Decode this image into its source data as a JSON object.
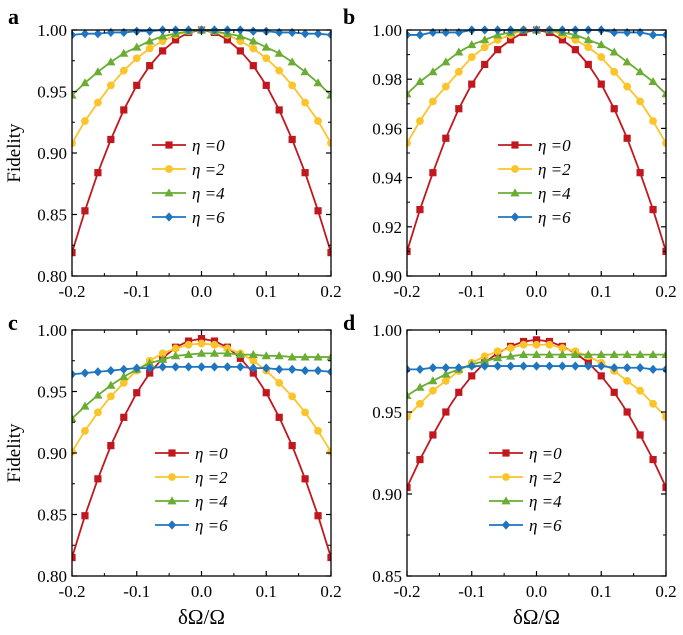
{
  "ylabel_shared": "Fidelity",
  "xlabel_shared": "δΩ/Ω",
  "legend_symbol": "η",
  "colors": {
    "eta0": "#c0181e",
    "eta2": "#fbc42a",
    "eta4": "#6aac34",
    "eta6": "#1f75bf"
  },
  "chart_data": [
    {
      "panel": "a",
      "type": "line",
      "xlim": [
        -0.2,
        0.2
      ],
      "xticks": [
        "-0.2",
        "-0.1",
        "0.0",
        "0.1",
        "0.2"
      ],
      "ylim": [
        0.8,
        1.0
      ],
      "yticks": [
        "0.80",
        "0.85",
        "0.90",
        "0.95",
        "1.00"
      ],
      "ylabel": "Fidelity",
      "xlabel": "",
      "legend": "center",
      "x": [
        -0.2,
        -0.18,
        -0.16,
        -0.14,
        -0.12,
        -0.1,
        -0.08,
        -0.06,
        -0.04,
        -0.02,
        0.0,
        0.02,
        0.04,
        0.06,
        0.08,
        0.1,
        0.12,
        0.14,
        0.16,
        0.18,
        0.2
      ],
      "series": [
        {
          "name": "η =0",
          "peak": 0.9995,
          "curv": 4.5,
          "values": [
            0.819,
            0.853,
            0.884,
            0.911,
            0.935,
            0.955,
            0.971,
            0.983,
            0.992,
            0.998,
            1.0,
            0.998,
            0.992,
            0.983,
            0.971,
            0.955,
            0.935,
            0.911,
            0.884,
            0.853,
            0.819
          ]
        },
        {
          "name": "η =2",
          "peak": 0.9995,
          "curv": 2.28,
          "values": [
            0.908,
            0.926,
            0.941,
            0.955,
            0.967,
            0.977,
            0.985,
            0.991,
            0.996,
            0.999,
            1.0,
            0.999,
            0.996,
            0.991,
            0.985,
            0.977,
            0.967,
            0.955,
            0.941,
            0.926,
            0.908
          ]
        },
        {
          "name": "η =4",
          "peak": 0.9995,
          "curv": 1.31,
          "values": [
            0.947,
            0.957,
            0.966,
            0.974,
            0.981,
            0.986,
            0.991,
            0.995,
            0.997,
            0.999,
            1.0,
            0.999,
            0.997,
            0.995,
            0.991,
            0.986,
            0.981,
            0.974,
            0.966,
            0.957,
            0.947
          ]
        },
        {
          "name": "η =6",
          "peak": 0.9995,
          "curv": 0.1,
          "values": [
            0.996,
            0.997,
            0.997,
            0.998,
            0.998,
            0.999,
            0.999,
            1.0,
            1.0,
            1.0,
            1.0,
            1.0,
            1.0,
            1.0,
            0.999,
            0.999,
            0.998,
            0.998,
            0.997,
            0.997,
            0.996
          ]
        }
      ]
    },
    {
      "panel": "b",
      "type": "line",
      "xlim": [
        -0.2,
        0.2
      ],
      "xticks": [
        "-0.2",
        "-0.1",
        "0.0",
        "0.1",
        "0.2"
      ],
      "ylim": [
        0.9,
        1.0
      ],
      "yticks": [
        "0.90",
        "0.92",
        "0.94",
        "0.96",
        "0.98",
        "1.00"
      ],
      "ylabel": "",
      "xlabel": "",
      "legend": "center",
      "x": [
        -0.2,
        -0.18,
        -0.16,
        -0.14,
        -0.12,
        -0.1,
        -0.08,
        -0.06,
        -0.04,
        -0.02,
        0.0,
        0.02,
        0.04,
        0.06,
        0.08,
        0.1,
        0.12,
        0.14,
        0.16,
        0.18,
        0.2
      ],
      "series": [
        {
          "name": "η =0",
          "peak": 1.0,
          "curv": 2.25,
          "values": [
            0.91,
            0.927,
            0.942,
            0.956,
            0.968,
            0.978,
            0.986,
            0.992,
            0.996,
            0.999,
            1.0,
            0.999,
            0.996,
            0.992,
            0.986,
            0.978,
            0.968,
            0.956,
            0.942,
            0.927,
            0.91
          ]
        },
        {
          "name": "η =2",
          "peak": 1.0,
          "curv": 1.15,
          "values": [
            0.954,
            0.963,
            0.971,
            0.977,
            0.983,
            0.989,
            0.993,
            0.996,
            0.998,
            1.0,
            1.0,
            1.0,
            0.998,
            0.996,
            0.993,
            0.989,
            0.983,
            0.977,
            0.971,
            0.963,
            0.954
          ]
        },
        {
          "name": "η =4",
          "peak": 1.0,
          "curv": 0.65,
          "values": [
            0.974,
            0.979,
            0.983,
            0.987,
            0.991,
            0.994,
            0.996,
            0.998,
            0.999,
            1.0,
            1.0,
            1.0,
            0.999,
            0.998,
            0.996,
            0.994,
            0.991,
            0.987,
            0.983,
            0.979,
            0.974
          ]
        },
        {
          "name": "η =6",
          "peak": 1.0,
          "curv": 0.05,
          "values": [
            0.998,
            0.998,
            0.999,
            0.999,
            0.999,
            1.0,
            1.0,
            1.0,
            1.0,
            1.0,
            1.0,
            1.0,
            1.0,
            1.0,
            1.0,
            1.0,
            0.999,
            0.999,
            0.999,
            0.998,
            0.998
          ]
        }
      ]
    },
    {
      "panel": "c",
      "type": "line",
      "xlim": [
        -0.2,
        0.2
      ],
      "xticks": [
        "-0.2",
        "-0.1",
        "0.0",
        "0.1",
        "0.2"
      ],
      "ylim": [
        0.8,
        1.0
      ],
      "yticks": [
        "0.80",
        "0.85",
        "0.90",
        "0.95",
        "1.00"
      ],
      "ylabel": "Fidelity",
      "xlabel": "δΩ/Ω",
      "legend": "bottom-center",
      "x": [
        -0.2,
        -0.18,
        -0.16,
        -0.14,
        -0.12,
        -0.1,
        -0.08,
        -0.06,
        -0.04,
        -0.02,
        0.0,
        0.02,
        0.04,
        0.06,
        0.08,
        0.1,
        0.12,
        0.14,
        0.16,
        0.18,
        0.2
      ],
      "series": [
        {
          "name": "η =0",
          "peak": 0.993,
          "curv": 4.45,
          "values": [
            0.815,
            0.849,
            0.879,
            0.906,
            0.929,
            0.949,
            0.965,
            0.977,
            0.986,
            0.991,
            0.993,
            0.991,
            0.986,
            0.977,
            0.965,
            0.949,
            0.929,
            0.906,
            0.879,
            0.849,
            0.815
          ]
        },
        {
          "name": "η =2",
          "peak": 0.989,
          "curv": 2.2,
          "values": [
            0.901,
            0.918,
            0.933,
            0.946,
            0.957,
            0.967,
            0.975,
            0.981,
            0.985,
            0.988,
            0.989,
            0.988,
            0.985,
            0.981,
            0.975,
            0.967,
            0.957,
            0.946,
            0.933,
            0.918,
            0.901
          ]
        },
        {
          "name": "η =4",
          "peak": 0.981,
          "curv": 1.32,
          "values": [
            0.928,
            0.938,
            0.947,
            0.955,
            0.962,
            0.968,
            0.973,
            0.976,
            0.979,
            0.98,
            0.981,
            0.981,
            0.981,
            0.98,
            0.98,
            0.979,
            0.979,
            0.978,
            0.978,
            0.978,
            0.978
          ]
        },
        {
          "name": "η =6",
          "peak": 0.97,
          "curv": 0.15,
          "values": [
            0.964,
            0.965,
            0.966,
            0.967,
            0.968,
            0.969,
            0.969,
            0.97,
            0.97,
            0.97,
            0.97,
            0.97,
            0.97,
            0.97,
            0.969,
            0.969,
            0.968,
            0.968,
            0.967,
            0.967,
            0.966
          ]
        }
      ]
    },
    {
      "panel": "d",
      "type": "line",
      "xlim": [
        -0.2,
        0.2
      ],
      "xticks": [
        "-0.2",
        "-0.1",
        "0.0",
        "0.1",
        "0.2"
      ],
      "ylim": [
        0.85,
        1.0
      ],
      "yticks": [
        "0.85",
        "0.90",
        "0.95",
        "1.00"
      ],
      "ylabel": "",
      "xlabel": "δΩ/Ω",
      "legend": "bottom-center",
      "x": [
        -0.2,
        -0.18,
        -0.16,
        -0.14,
        -0.12,
        -0.1,
        -0.08,
        -0.06,
        -0.04,
        -0.02,
        0.0,
        0.02,
        0.04,
        0.06,
        0.08,
        0.1,
        0.12,
        0.14,
        0.16,
        0.18,
        0.2
      ],
      "series": [
        {
          "name": "η =0",
          "peak": 0.994,
          "curv": 2.25,
          "values": [
            0.904,
            0.921,
            0.936,
            0.95,
            0.962,
            0.972,
            0.98,
            0.986,
            0.99,
            0.993,
            0.994,
            0.993,
            0.99,
            0.986,
            0.98,
            0.972,
            0.962,
            0.95,
            0.936,
            0.921,
            0.904
          ]
        },
        {
          "name": "η =2",
          "peak": 0.991,
          "curv": 1.1,
          "values": [
            0.947,
            0.955,
            0.963,
            0.969,
            0.975,
            0.98,
            0.984,
            0.987,
            0.989,
            0.991,
            0.991,
            0.991,
            0.989,
            0.987,
            0.984,
            0.98,
            0.975,
            0.969,
            0.963,
            0.955,
            0.947
          ]
        },
        {
          "name": "η =4",
          "peak": 0.985,
          "curv": 0.65,
          "values": [
            0.96,
            0.965,
            0.969,
            0.973,
            0.976,
            0.979,
            0.981,
            0.983,
            0.984,
            0.985,
            0.985,
            0.985,
            0.985,
            0.985,
            0.985,
            0.985,
            0.985,
            0.985,
            0.985,
            0.985,
            0.985
          ]
        },
        {
          "name": "η =6",
          "peak": 0.978,
          "curv": 0.05,
          "values": [
            0.976,
            0.976,
            0.977,
            0.977,
            0.977,
            0.978,
            0.978,
            0.978,
            0.978,
            0.978,
            0.978,
            0.978,
            0.978,
            0.978,
            0.978,
            0.978,
            0.977,
            0.977,
            0.977,
            0.976,
            0.976
          ]
        }
      ]
    }
  ]
}
